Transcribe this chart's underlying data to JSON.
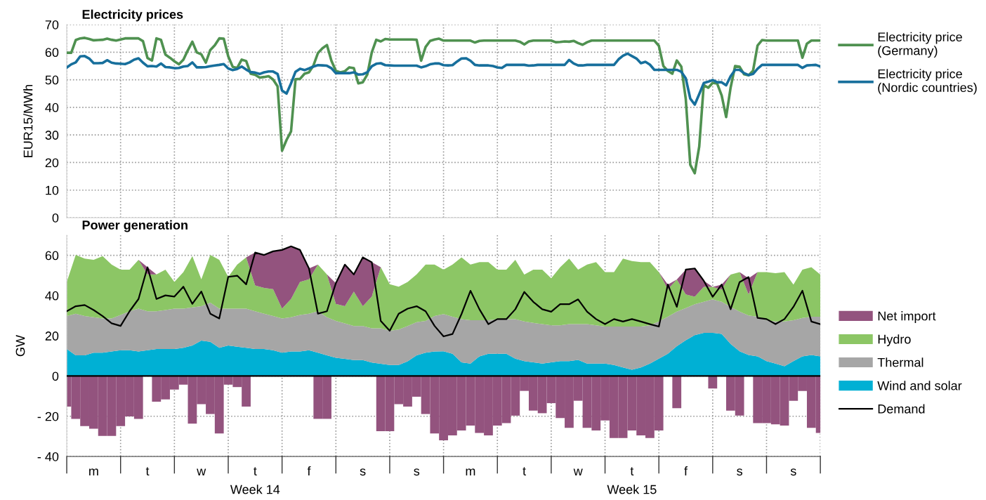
{
  "chart_data": [
    {
      "type": "line",
      "title": "Electricity prices",
      "ylabel": "EUR15/MWh",
      "categories": [
        null,
        null,
        null,
        null,
        null,
        null,
        null,
        null,
        null,
        null,
        null,
        null,
        null,
        null,
        null,
        null,
        null,
        null,
        null,
        null,
        null,
        null,
        null,
        null,
        null,
        null,
        null,
        null,
        null,
        null,
        null,
        null,
        null,
        null,
        null,
        null,
        null,
        null,
        null,
        null,
        null,
        null,
        null,
        null,
        null,
        null,
        null,
        null,
        null,
        null,
        null,
        null,
        null,
        null,
        null,
        null,
        null,
        null,
        null,
        null,
        null,
        null,
        null,
        null,
        null,
        null,
        null,
        null,
        null,
        null,
        null,
        null,
        null,
        null,
        null,
        null,
        null,
        null,
        null,
        null,
        null,
        null,
        null,
        null,
        null,
        null,
        null,
        null,
        null,
        null,
        null,
        null,
        null,
        null,
        null,
        null,
        null,
        null,
        null,
        null,
        null,
        null,
        null,
        null,
        null,
        null,
        null,
        null,
        null,
        null,
        null,
        null,
        null,
        null,
        null,
        null,
        null,
        null,
        null,
        null,
        null,
        null,
        null,
        null,
        null,
        null,
        null,
        null,
        null,
        null,
        null,
        null,
        null,
        null,
        null,
        null,
        null,
        null,
        null,
        null,
        null,
        null,
        null,
        null,
        null,
        null,
        null,
        null,
        null,
        null,
        null,
        null,
        null,
        null,
        null,
        null,
        null,
        null,
        null,
        null,
        null,
        null,
        null,
        null,
        null,
        null,
        null,
        null,
        null
      ],
      "ylim": [
        0,
        70
      ],
      "yticks": [
        0,
        10,
        20,
        30,
        40,
        50,
        60,
        70
      ],
      "grid": true,
      "legend": "top right",
      "tick_labels": "y",
      "series": [
        {
          "name": "Electricity price\n(Germany)",
          "color": "#4f9150",
          "values": [
            59.8,
            59.8,
            64.4,
            65,
            65.2,
            64.8,
            64.3,
            64.4,
            64.5,
            64.9,
            64.5,
            64.2,
            64.6,
            65,
            65,
            65,
            65,
            64,
            57.9,
            57,
            65,
            64.5,
            59.1,
            58,
            56.7,
            55.6,
            57.3,
            60.7,
            63.8,
            59.9,
            59.2,
            56.2,
            60.8,
            62.5,
            65,
            64.9,
            58.5,
            54.7,
            54.3,
            57.3,
            56.8,
            52.2,
            51.8,
            50.8,
            51,
            51.3,
            50.1,
            47.6,
            24.3,
            28.2,
            31.3,
            50.2,
            50.3,
            52.2,
            52.7,
            55.2,
            59.7,
            61.4,
            62.6,
            56.9,
            53.2,
            52.7,
            53.1,
            54.5,
            54.2,
            48.7,
            49.1,
            51.9,
            59.9,
            64.5,
            63.9,
            64.8,
            64.6,
            64.6,
            64.6,
            64.6,
            64.6,
            64.6,
            64.5,
            56.9,
            61.9,
            64.1,
            64.6,
            64.9,
            64.2,
            64.2,
            64.2,
            64.2,
            64.2,
            64.2,
            64.2,
            63.5,
            64.1,
            64.2,
            64.2,
            64.2,
            64.2,
            64.2,
            64.2,
            64.2,
            64.2,
            63.8,
            62.8,
            63.9,
            64.2,
            64.2,
            64.2,
            64.2,
            64.2,
            63.6,
            63.7,
            63.9,
            63.8,
            64.1,
            63.3,
            62.7,
            63.6,
            64.2,
            64.2,
            64.2,
            64.2,
            64.2,
            64.2,
            64.2,
            64.2,
            64.2,
            64.2,
            64.2,
            64.2,
            64.2,
            64.2,
            64.2,
            62.3,
            55,
            53.2,
            52.2,
            57,
            54.8,
            43,
            19.2,
            16.1,
            25.8,
            48.1,
            47.1,
            48.9,
            48.6,
            44.3,
            36.5,
            47.2,
            55,
            54.7,
            52,
            51.6,
            53.3,
            62.4,
            64.4,
            64.2,
            64.2,
            64.2,
            64.2,
            64.2,
            64.2,
            64.2,
            64.2,
            58,
            63.1,
            64.2,
            64.2,
            64.2
          ]
        },
        {
          "name": "Electricity price\n(Nordic countries)",
          "color": "#176f9c",
          "values": [
            54.4,
            55.6,
            56.3,
            58.5,
            58.6,
            57.7,
            56,
            56,
            56.1,
            57.1,
            56.2,
            55.9,
            55.8,
            55.7,
            56.3,
            57.3,
            57.8,
            56.2,
            54.9,
            55,
            54.8,
            55.9,
            54.6,
            54.5,
            54.2,
            54.3,
            54.8,
            55,
            56.3,
            54.5,
            54.5,
            54.6,
            54.9,
            55.2,
            55.4,
            55.7,
            54.1,
            53.5,
            53.9,
            54.8,
            53.7,
            52.8,
            52.6,
            52.1,
            52.7,
            53,
            53,
            52.1,
            46.1,
            45,
            48.7,
            52.9,
            54,
            53.5,
            54.1,
            54.8,
            55.3,
            55.2,
            55.1,
            54.2,
            52.4,
            52.4,
            52.4,
            52.4,
            52.7,
            51.9,
            52,
            52.7,
            54.9,
            55.8,
            56,
            55.3,
            55.2,
            55.1,
            55.1,
            55.1,
            55.1,
            55.1,
            55.1,
            54.5,
            54.9,
            55.6,
            55.9,
            55.9,
            55.3,
            55.2,
            55.3,
            56.6,
            57.7,
            57.8,
            56.9,
            55.4,
            55.2,
            55.2,
            55.2,
            55,
            54.5,
            54.3,
            55.4,
            55.4,
            55.4,
            55.4,
            55.4,
            55.1,
            55.2,
            55.4,
            55.4,
            55.4,
            55.4,
            55.4,
            55.4,
            55.4,
            57.2,
            55.9,
            55.2,
            55.2,
            55.4,
            55.4,
            55.4,
            55.4,
            55.4,
            55.4,
            55.4,
            57.4,
            58.7,
            59.5,
            58.6,
            57.7,
            56,
            56.5,
            55.5,
            53.6,
            53.6,
            53.6,
            53.6,
            53.6,
            53.6,
            52.9,
            50.5,
            43.2,
            41,
            44.8,
            48.8,
            49.3,
            49.9,
            49.1,
            49.1,
            48,
            51.3,
            53.6,
            53.6,
            52.4,
            51.7,
            52.1,
            54,
            55.4,
            55.4,
            55.4,
            55.4,
            55.4,
            55.4,
            55.4,
            55.4,
            55.4,
            54.3,
            55.2,
            55.3,
            55.4,
            54.8
          ]
        }
      ]
    },
    {
      "type": "area",
      "stacked": true,
      "title": "Power generation",
      "ylabel": "GW",
      "categories": [
        null,
        null,
        null,
        "m",
        null,
        null,
        null,
        null,
        null,
        "t",
        null,
        null,
        null,
        null,
        null,
        "w",
        null,
        null,
        null,
        null,
        null,
        "t",
        null,
        null,
        null,
        null,
        null,
        "f",
        null,
        null,
        null,
        null,
        null,
        "s",
        null,
        null,
        null,
        null,
        null,
        "s",
        null,
        null,
        null,
        null,
        null,
        "m",
        null,
        null,
        null,
        null,
        null,
        "t",
        null,
        null,
        null,
        null,
        null,
        "w",
        null,
        null,
        null,
        null,
        null,
        "t",
        null,
        null,
        null,
        null,
        null,
        "f",
        null,
        null,
        null,
        null,
        null,
        "s",
        null,
        null,
        null,
        null,
        null,
        "s",
        null,
        null,
        null
      ],
      "ylim": [
        -40,
        70
      ],
      "yticks": [
        {
          "value": -40,
          "label": "- 40"
        },
        {
          "value": -20,
          "label": "- 20"
        },
        0,
        20,
        40,
        60
      ],
      "grid": true,
      "legend": "right",
      "ref_lines": [
        {
          "axis": "y",
          "value": 0,
          "color": "#000000"
        }
      ],
      "annotations": [
        "Week 14",
        "Week 15"
      ],
      "series": [
        {
          "name": "Wind and solar",
          "color": "#00b0d4",
          "values": [
            13.4,
            10.3,
            10.3,
            11.6,
            11.6,
            12.2,
            12.8,
            12.8,
            12.2,
            12.8,
            13.4,
            13.4,
            13.4,
            14.0,
            15.2,
            17.6,
            17.0,
            14.0,
            15.2,
            14.6,
            14.0,
            13.4,
            13.4,
            12.8,
            11.6,
            12.2,
            12.2,
            12.8,
            11.6,
            10.3,
            9.1,
            8.5,
            7.9,
            7.9,
            6.7,
            6.1,
            5.5,
            5.5,
            7.3,
            10.3,
            11.6,
            12.2,
            12.3,
            11.1,
            6.8,
            6.2,
            9.8,
            11.1,
            11.1,
            11.1,
            8.6,
            7.4,
            6.8,
            6.2,
            6.8,
            7.4,
            7.4,
            8.0,
            6.2,
            6.2,
            6.2,
            5.5,
            4.3,
            3.1,
            4.3,
            6.2,
            8.6,
            11.1,
            14.8,
            17.8,
            20.3,
            21.5,
            21.5,
            20.9,
            16.0,
            12.3,
            10.5,
            9.8,
            7.4,
            6.2,
            4.9,
            7.4,
            9.8,
            10.5,
            9.8
          ]
        },
        {
          "name": "Thermal",
          "color": "#a6a6a6",
          "values": [
            16.4,
            20.7,
            19.5,
            17.6,
            17.0,
            16.4,
            17.6,
            19.4,
            21.3,
            19.4,
            18.8,
            19.4,
            20.1,
            19.5,
            18.9,
            17.1,
            19.5,
            19.5,
            18.3,
            18.9,
            19.5,
            18.8,
            17.6,
            17.0,
            17.0,
            17.0,
            18.2,
            18.2,
            20.6,
            18.9,
            18.3,
            17.7,
            17.0,
            17.0,
            17.0,
            17.6,
            17.0,
            17.6,
            17.6,
            16.5,
            15.8,
            17.6,
            18.5,
            18.4,
            21.5,
            21.5,
            17.9,
            16.6,
            17.2,
            17.2,
            19.7,
            19.7,
            19.6,
            19.6,
            18.4,
            17.8,
            18.4,
            17.8,
            19.6,
            19.0,
            18.4,
            19.1,
            20.3,
            21.5,
            20.3,
            19.0,
            18.5,
            18.4,
            17.2,
            16.0,
            15.4,
            15.4,
            16.6,
            16.0,
            18.4,
            19.7,
            19.6,
            19.7,
            20.3,
            20.9,
            22.2,
            20.3,
            19.1,
            19.0,
            19.7
          ]
        },
        {
          "name": "Hydro",
          "color": "#8cc665",
          "values": [
            17.0,
            29.2,
            28.6,
            28.6,
            31.0,
            26.8,
            22.5,
            20.7,
            24.3,
            18.3,
            18.3,
            20.1,
            13.3,
            18.2,
            25.5,
            13.4,
            23.7,
            24.3,
            15.8,
            21.9,
            25.5,
            12.8,
            12.8,
            13.4,
            4.9,
            9.1,
            16.4,
            17.1,
            23.2,
            21.3,
            8.5,
            8.5,
            17.1,
            9.8,
            15.8,
            30.4,
            23.1,
            21.3,
            21.9,
            23.7,
            28.0,
            25.6,
            22.1,
            25.9,
            30.7,
            27.7,
            28.9,
            28.9,
            24.6,
            24.6,
            29.5,
            23.3,
            26.5,
            27.1,
            23.4,
            28.9,
            32.6,
            27.1,
            29.6,
            31.4,
            27.1,
            27.1,
            33.8,
            32.6,
            32.0,
            31.4,
            24.6,
            13.6,
            16.0,
            6.8,
            3.7,
            7.4,
            6.2,
            6.1,
            16.0,
            19.7,
            10.5,
            22.2,
            24.0,
            24.0,
            24.6,
            17.8,
            24.0,
            24.6,
            20.9
          ]
        },
        {
          "name": "Net import",
          "color": "#93537e",
          "values": [
            0,
            0,
            0,
            0,
            0,
            0,
            0,
            0,
            0,
            3.6,
            0,
            0,
            0,
            0,
            0,
            0,
            0,
            0,
            0,
            0,
            0,
            16.4,
            16.4,
            18.8,
            29.2,
            26.2,
            15.9,
            5.4,
            0,
            0,
            10.3,
            20.7,
            8.5,
            24.3,
            17.1,
            0,
            0,
            0,
            0,
            0,
            0,
            0,
            0,
            0,
            0,
            0,
            0,
            0,
            0,
            0,
            0,
            0,
            0,
            0,
            0,
            0,
            0,
            0,
            0,
            0,
            0,
            0,
            0,
            0,
            0,
            0,
            0,
            2.4,
            0,
            12.3,
            14.1,
            3.1,
            0,
            2.5,
            0,
            0,
            8.0,
            0,
            0,
            0,
            0,
            0,
            0,
            0,
            0
          ]
        },
        {
          "type": "bar",
          "color": "#93537e",
          "values": [
            -15.2,
            -21.3,
            -24.9,
            -26.2,
            -29.8,
            -29.8,
            -24.9,
            -20.1,
            -21.3,
            null,
            -12.8,
            -11.6,
            -6.7,
            -4.3,
            -23.7,
            -14.0,
            -18.9,
            -28.6,
            -4.3,
            -5.5,
            -15.2,
            null,
            null,
            null,
            null,
            null,
            null,
            null,
            -21.3,
            -21.3,
            null,
            null,
            null,
            null,
            null,
            -27.4,
            -27.4,
            -14.0,
            -15.2,
            -10.3,
            -18.9,
            -28.6,
            -32.0,
            -29.5,
            -27.1,
            -24.6,
            -28.3,
            -29.5,
            -24.6,
            -23.4,
            -19.7,
            -7.4,
            -17.2,
            -18.5,
            -13.5,
            -20.9,
            -25.8,
            -12.3,
            -25.8,
            -27.1,
            -22.1,
            -30.8,
            -30.8,
            -27.1,
            -29.5,
            -30.8,
            -27.1,
            null,
            -16.0,
            null,
            null,
            null,
            -6.2,
            null,
            -17.2,
            -19.7,
            null,
            -23.4,
            -23.4,
            -24.0,
            -24.6,
            -12.3,
            -7.4,
            -25.8,
            -28.3
          ]
        },
        {
          "name": "Demand",
          "type": "line",
          "color": "#000000",
          "values": [
            32.2,
            34.7,
            35.3,
            32.8,
            29.8,
            26.2,
            24.9,
            32.2,
            38.3,
            54.1,
            38.3,
            40.1,
            39.5,
            44.4,
            35.9,
            42.0,
            31.0,
            28.6,
            49.3,
            49.9,
            45.6,
            61.4,
            60.2,
            62.0,
            62.7,
            64.5,
            62.7,
            53.5,
            31.0,
            32.2,
            46.2,
            55.4,
            50.5,
            59.0,
            56.6,
            27.4,
            22.5,
            31.0,
            33.5,
            34.7,
            32.2,
            24.9,
            19.7,
            20.9,
            30.8,
            42.4,
            33.2,
            25.8,
            28.3,
            28.3,
            33.2,
            41.8,
            36.9,
            33.2,
            32.0,
            35.7,
            35.7,
            38.1,
            32.0,
            28.3,
            25.8,
            28.3,
            27.1,
            28.3,
            27.1,
            25.8,
            24.6,
            45.5,
            34.4,
            52.9,
            53.5,
            47.4,
            39.4,
            45.5,
            33.2,
            46.7,
            49.2,
            28.9,
            28.3,
            25.8,
            28.3,
            34.4,
            42.4,
            27.1,
            25.8
          ]
        }
      ]
    }
  ]
}
